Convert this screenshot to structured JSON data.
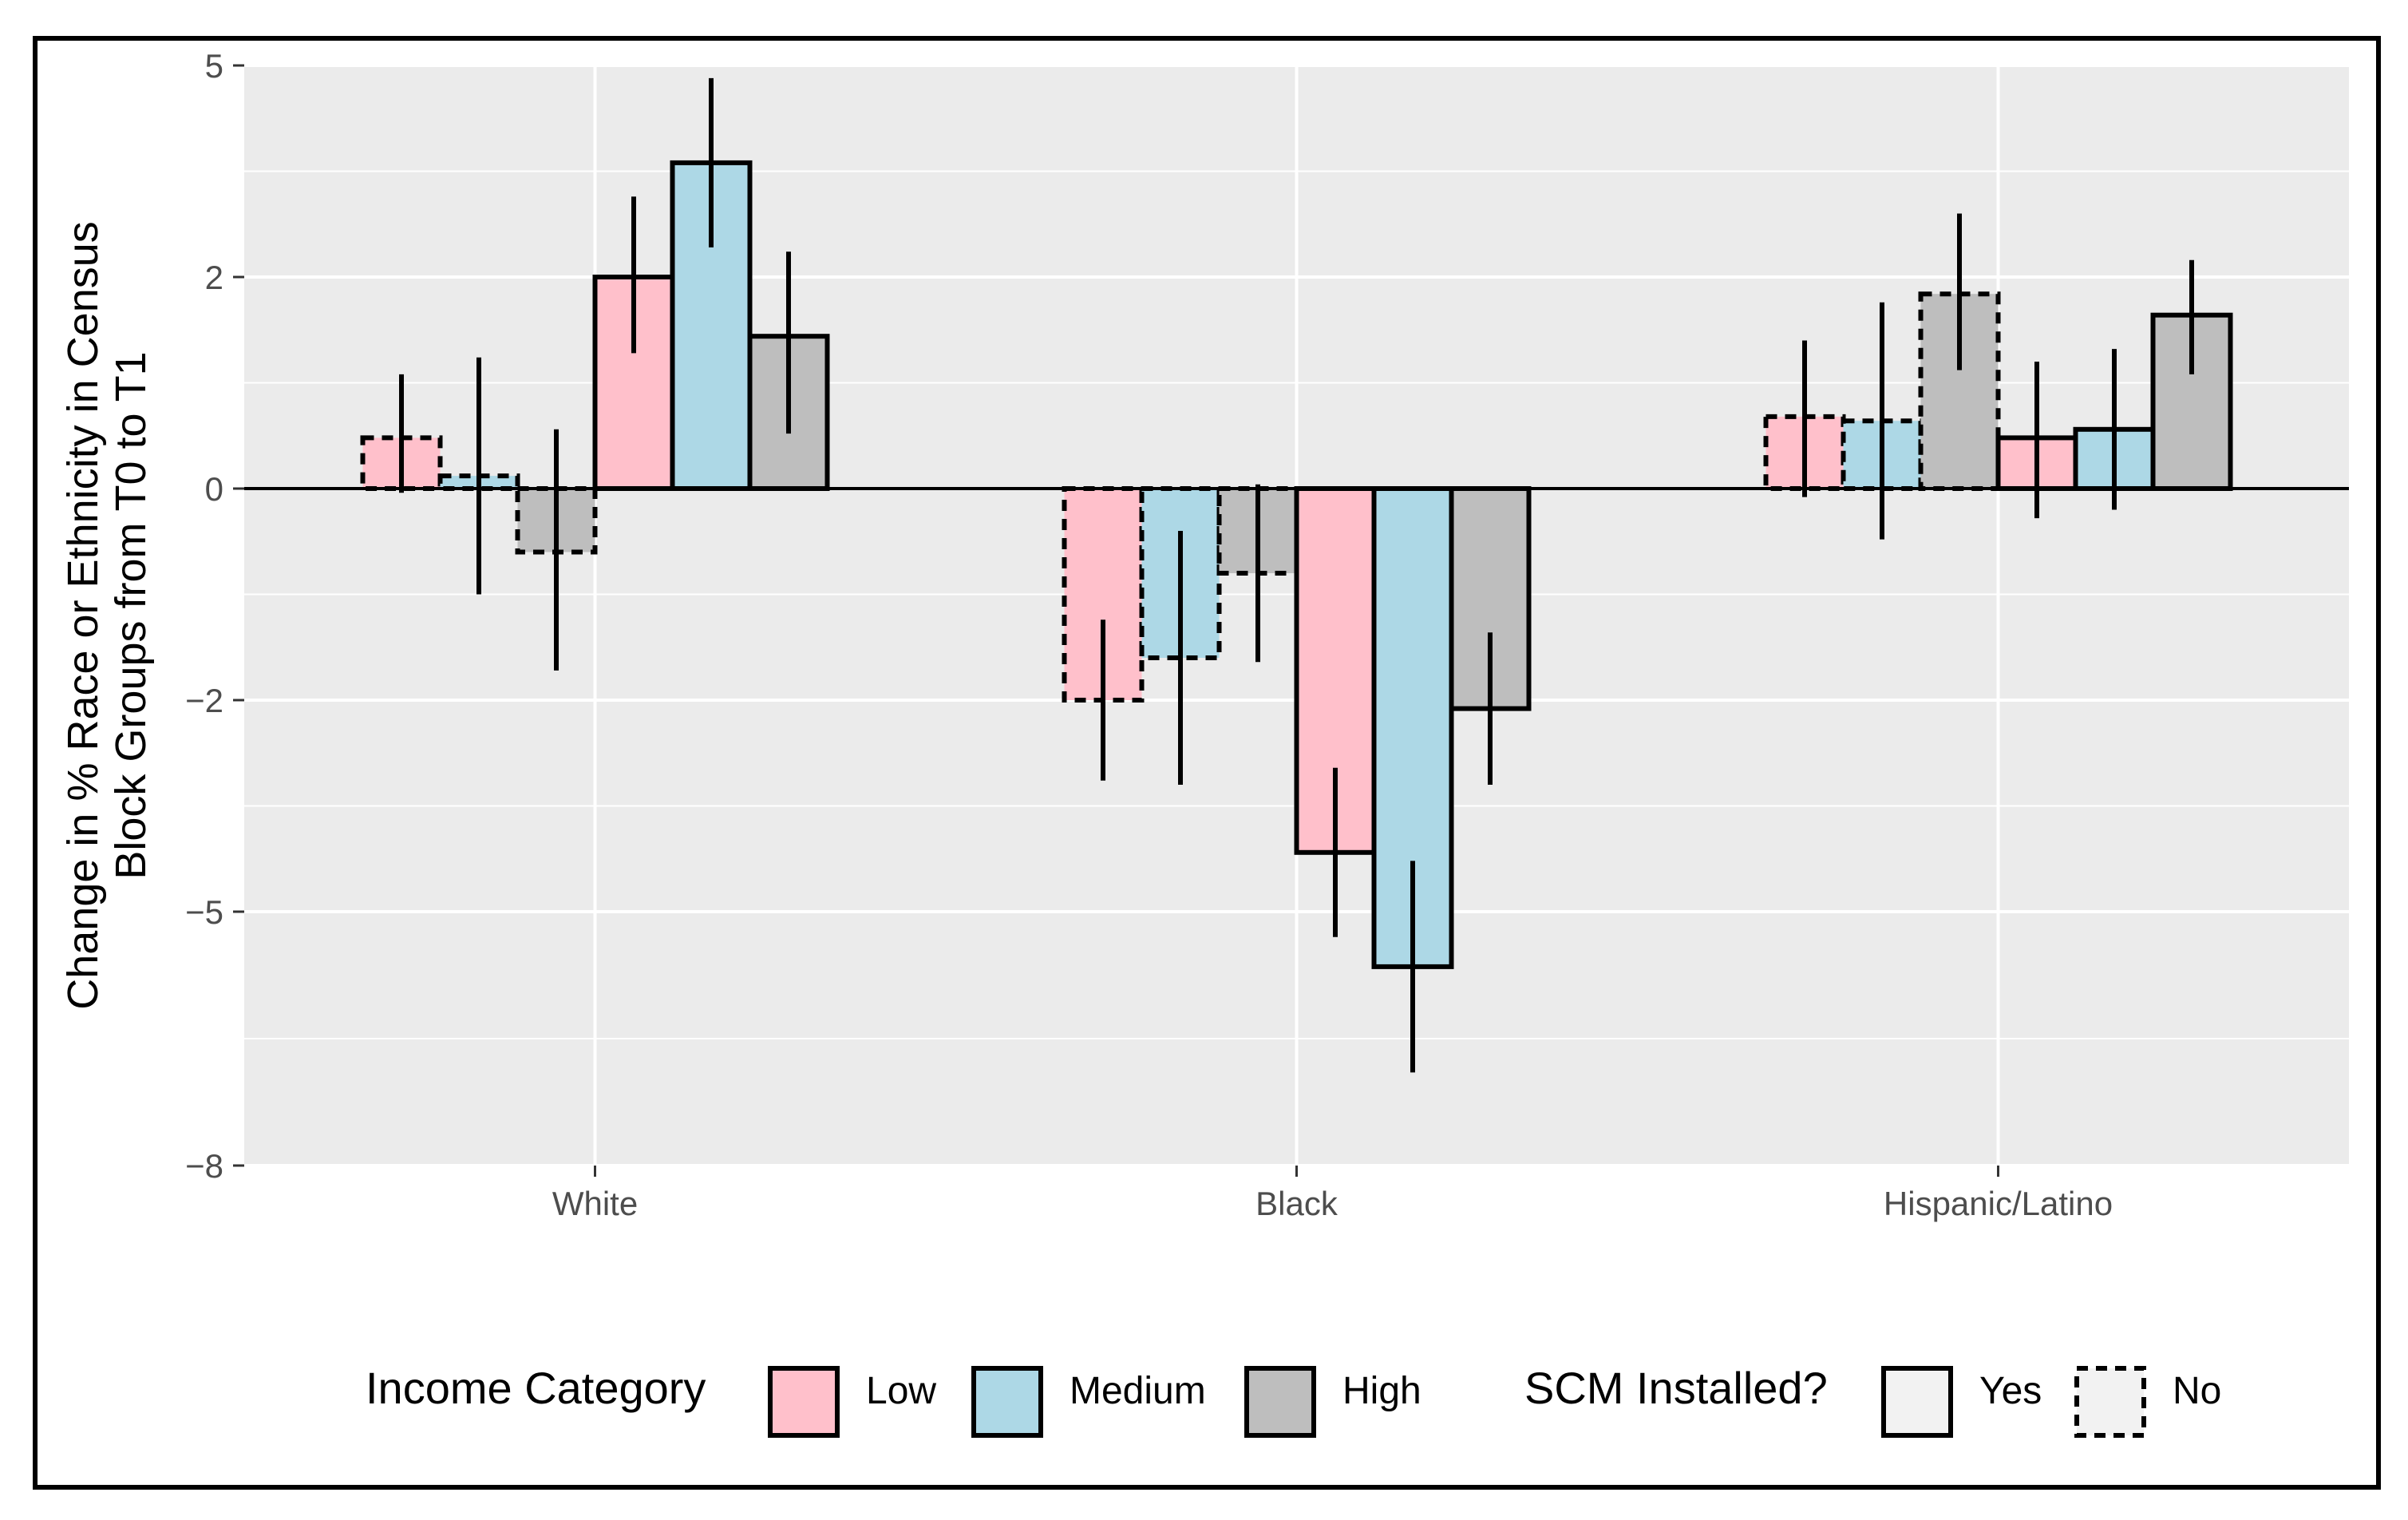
{
  "chart_data": {
    "type": "bar",
    "title": "",
    "xlabel": "",
    "ylabel_lines": [
      "Change in % Race or Ethnicity in Census",
      "Block Groups from T0 to T1"
    ],
    "ylim": [
      -8,
      5
    ],
    "ybreaks": [
      5,
      2.5,
      0,
      -2.5,
      -5,
      -8
    ],
    "ytick_labels": [
      "5",
      "2",
      "0",
      "−2",
      "−5",
      "−8"
    ],
    "categories": [
      "White",
      "Black",
      "Hispanic/Latino"
    ],
    "series": [
      {
        "name": "Low / No",
        "income": "Low",
        "scm": "No",
        "values": [
          0.6,
          -2.5,
          0.85
        ],
        "err_low": [
          -0.05,
          -3.45,
          -0.1
        ],
        "err_high": [
          1.35,
          -1.55,
          1.75
        ]
      },
      {
        "name": "Medium / No",
        "income": "Medium",
        "scm": "No",
        "values": [
          0.15,
          -2.0,
          0.8
        ],
        "err_low": [
          -1.25,
          -3.5,
          -0.6
        ],
        "err_high": [
          1.55,
          -0.5,
          2.2
        ]
      },
      {
        "name": "High / No",
        "income": "High",
        "scm": "No",
        "values": [
          -0.75,
          -1.0,
          2.3
        ],
        "err_low": [
          -2.15,
          -2.05,
          1.4
        ],
        "err_high": [
          0.7,
          0.05,
          3.25
        ]
      },
      {
        "name": "Low / Yes",
        "income": "Low",
        "scm": "Yes",
        "values": [
          2.5,
          -4.3,
          0.6
        ],
        "err_low": [
          1.6,
          -5.3,
          -0.35
        ],
        "err_high": [
          3.45,
          -3.3,
          1.5
        ]
      },
      {
        "name": "Medium / Yes",
        "income": "Medium",
        "scm": "Yes",
        "values": [
          3.85,
          -5.65,
          0.7
        ],
        "err_low": [
          2.85,
          -6.9,
          -0.25
        ],
        "err_high": [
          4.85,
          -4.4,
          1.65
        ]
      },
      {
        "name": "High / Yes",
        "income": "High",
        "scm": "Yes",
        "values": [
          1.8,
          -2.6,
          2.05
        ],
        "err_low": [
          0.65,
          -3.5,
          1.35
        ],
        "err_high": [
          2.8,
          -1.7,
          2.7
        ]
      }
    ],
    "legend": {
      "placement": "bottom",
      "income_title": "Income Category",
      "income_items": [
        {
          "label": "Low",
          "color": "#FFC0CB"
        },
        {
          "label": "Medium",
          "color": "#ADD8E6"
        },
        {
          "label": "High",
          "color": "#BEBEBE"
        }
      ],
      "scm_title": "SCM Installed?",
      "scm_items": [
        {
          "label": "Yes",
          "line": "solid"
        },
        {
          "label": "No",
          "line": "dashed"
        }
      ]
    },
    "colors": {
      "Low": "#FFC0CB",
      "Medium": "#ADD8E6",
      "High": "#BEBEBE",
      "panel": "#EBEBEB",
      "grid": "#FFFFFF",
      "frame": "#000000",
      "key_fill": "#F2F2F2"
    }
  }
}
